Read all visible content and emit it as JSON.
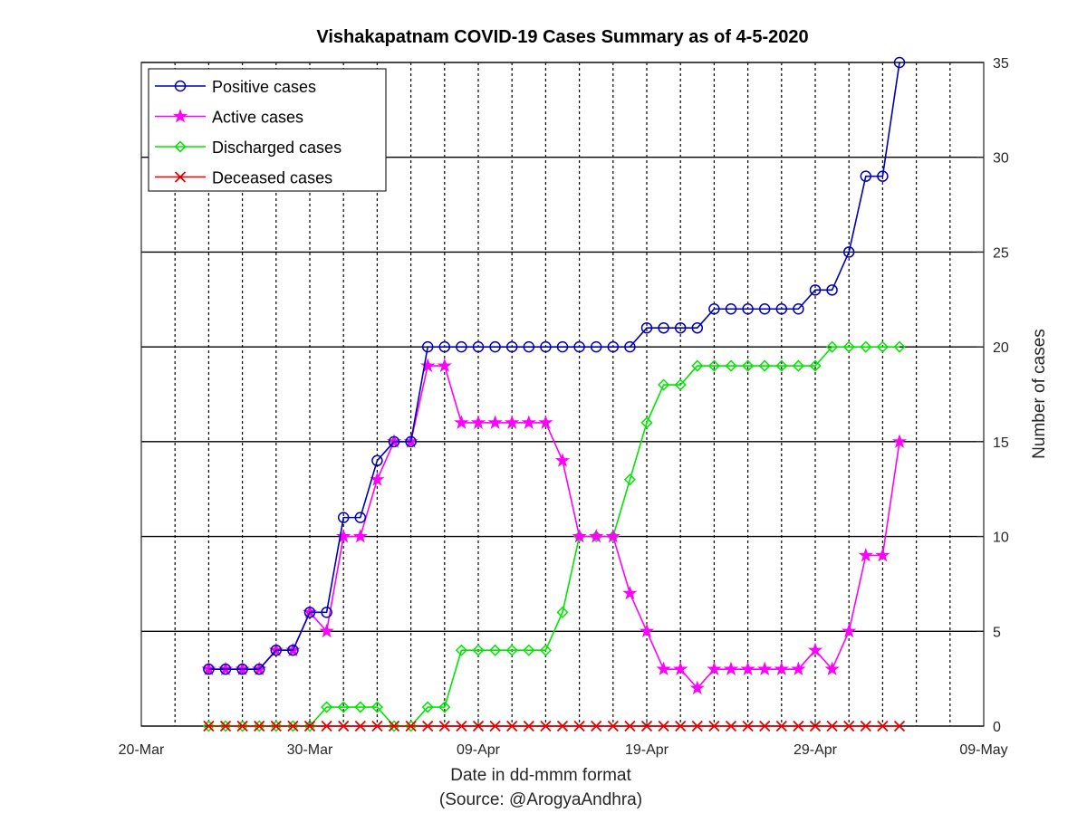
{
  "chart_data": {
    "type": "line",
    "title": "Vishakapatnam COVID-19 Cases Summary as of 4-5-2020",
    "xlabel": "Date in dd-mmm format",
    "xlabel_source": "(Source: @ArogyaAndhra)",
    "ylabel": "Number of cases",
    "xlim": [
      "2020-03-20",
      "2020-05-09"
    ],
    "ylim": [
      0,
      35
    ],
    "x_ticks": [
      "20-Mar",
      "30-Mar",
      "09-Apr",
      "19-Apr",
      "29-Apr",
      "09-May"
    ],
    "y_ticks": [
      "0",
      "5",
      "10",
      "15",
      "20",
      "25",
      "30",
      "35"
    ],
    "y_axis_side": "right",
    "grid": true,
    "legend_position": "top-left",
    "x": [
      "2020-03-24",
      "2020-03-25",
      "2020-03-26",
      "2020-03-27",
      "2020-03-28",
      "2020-03-29",
      "2020-03-30",
      "2020-03-31",
      "2020-04-01",
      "2020-04-02",
      "2020-04-03",
      "2020-04-04",
      "2020-04-05",
      "2020-04-06",
      "2020-04-07",
      "2020-04-08",
      "2020-04-09",
      "2020-04-10",
      "2020-04-11",
      "2020-04-12",
      "2020-04-13",
      "2020-04-14",
      "2020-04-15",
      "2020-04-16",
      "2020-04-17",
      "2020-04-18",
      "2020-04-19",
      "2020-04-20",
      "2020-04-21",
      "2020-04-22",
      "2020-04-23",
      "2020-04-24",
      "2020-04-25",
      "2020-04-26",
      "2020-04-27",
      "2020-04-28",
      "2020-04-29",
      "2020-04-30",
      "2020-05-01",
      "2020-05-02",
      "2020-05-03",
      "2020-05-04"
    ],
    "series": [
      {
        "name": "Positive cases",
        "color": "#0000b4",
        "marker": "circle",
        "values": [
          3,
          3,
          3,
          3,
          4,
          4,
          6,
          6,
          11,
          11,
          14,
          15,
          15,
          20,
          20,
          20,
          20,
          20,
          20,
          20,
          20,
          20,
          20,
          20,
          20,
          20,
          21,
          21,
          21,
          21,
          22,
          22,
          22,
          22,
          22,
          22,
          23,
          23,
          25,
          29,
          29,
          35
        ]
      },
      {
        "name": "Active cases",
        "color": "#ff00ff",
        "marker": "star",
        "values": [
          3,
          3,
          3,
          3,
          4,
          4,
          6,
          5,
          10,
          10,
          13,
          15,
          15,
          19,
          19,
          16,
          16,
          16,
          16,
          16,
          16,
          14,
          10,
          10,
          10,
          7,
          5,
          3,
          3,
          2,
          3,
          3,
          3,
          3,
          3,
          3,
          4,
          3,
          5,
          9,
          9,
          15
        ]
      },
      {
        "name": "Discharged cases",
        "color": "#00e600",
        "marker": "diamond",
        "values": [
          0,
          0,
          0,
          0,
          0,
          0,
          0,
          1,
          1,
          1,
          1,
          0,
          0,
          1,
          1,
          4,
          4,
          4,
          4,
          4,
          4,
          6,
          10,
          10,
          10,
          13,
          16,
          18,
          18,
          19,
          19,
          19,
          19,
          19,
          19,
          19,
          19,
          20,
          20,
          20,
          20,
          20
        ]
      },
      {
        "name": "Deceased cases",
        "color": "#e60000",
        "marker": "x",
        "values": [
          0,
          0,
          0,
          0,
          0,
          0,
          0,
          0,
          0,
          0,
          0,
          0,
          0,
          0,
          0,
          0,
          0,
          0,
          0,
          0,
          0,
          0,
          0,
          0,
          0,
          0,
          0,
          0,
          0,
          0,
          0,
          0,
          0,
          0,
          0,
          0,
          0,
          0,
          0,
          0,
          0,
          0
        ]
      }
    ]
  }
}
